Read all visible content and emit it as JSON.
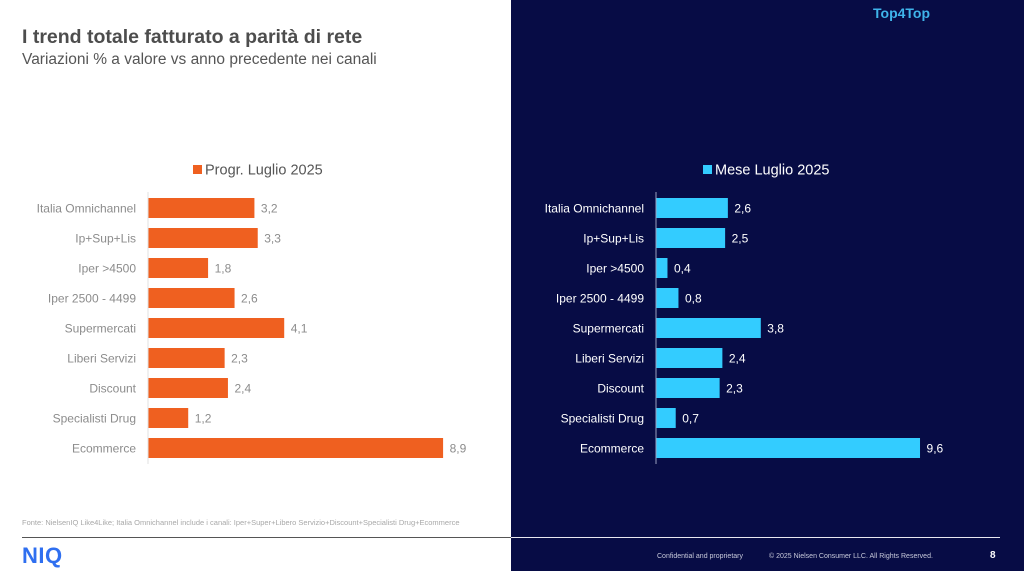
{
  "header": {
    "title": "I trend totale fatturato a parità di rete",
    "subtitle": "Variazioni % a valore vs anno precedente nei canali",
    "brand_tag": "Top4Top"
  },
  "chart_data": [
    {
      "type": "bar",
      "orientation": "horizontal",
      "title": "",
      "legend": "Progr. Luglio 2025",
      "legend_position": "top",
      "color": "#ef6020",
      "categories": [
        "Italia Omnichannel",
        "Ip+Sup+Lis",
        "Iper >4500",
        "Iper 2500 - 4499",
        "Supermercati",
        "Liberi Servizi",
        "Discount",
        "Specialisti Drug",
        "Ecommerce"
      ],
      "values": [
        3.2,
        3.3,
        1.8,
        2.6,
        4.1,
        2.3,
        2.4,
        1.2,
        8.9
      ],
      "value_labels": [
        "3,2",
        "3,3",
        "1,8",
        "2,6",
        "4,1",
        "2,3",
        "2,4",
        "1,2",
        "8,9"
      ],
      "xlabel": "",
      "ylabel": "",
      "xlim": [
        0,
        9.6
      ],
      "grid": false
    },
    {
      "type": "bar",
      "orientation": "horizontal",
      "title": "",
      "legend": "Mese Luglio 2025",
      "legend_position": "top",
      "color": "#33ccff",
      "categories": [
        "Italia Omnichannel",
        "Ip+Sup+Lis",
        "Iper >4500",
        "Iper 2500 - 4499",
        "Supermercati",
        "Liberi Servizi",
        "Discount",
        "Specialisti Drug",
        "Ecommerce"
      ],
      "values": [
        2.6,
        2.5,
        0.4,
        0.8,
        3.8,
        2.4,
        2.3,
        0.7,
        9.6
      ],
      "value_labels": [
        "2,6",
        "2,5",
        "0,4",
        "0,8",
        "3,8",
        "2,4",
        "2,3",
        "0,7",
        "9,6"
      ],
      "xlabel": "",
      "ylabel": "",
      "xlim": [
        0,
        11
      ],
      "grid": false
    }
  ],
  "footer": {
    "footnote": "Fonte: NielsenIQ Like4Like; Italia Omnichannel include i canali: Iper+Super+Libero Servizio+Discount+Specialisti Drug+Ecommerce",
    "logo": "NIQ",
    "confidential": "Confidential and proprietary",
    "copyright": "© 2025 Nielsen Consumer LLC. All Rights Reserved.",
    "page_number": "8"
  },
  "colors": {
    "dark_panel": "#070c45",
    "orange": "#ef6020",
    "cyan": "#33ccff",
    "brand_blue": "#2f6ff0"
  }
}
